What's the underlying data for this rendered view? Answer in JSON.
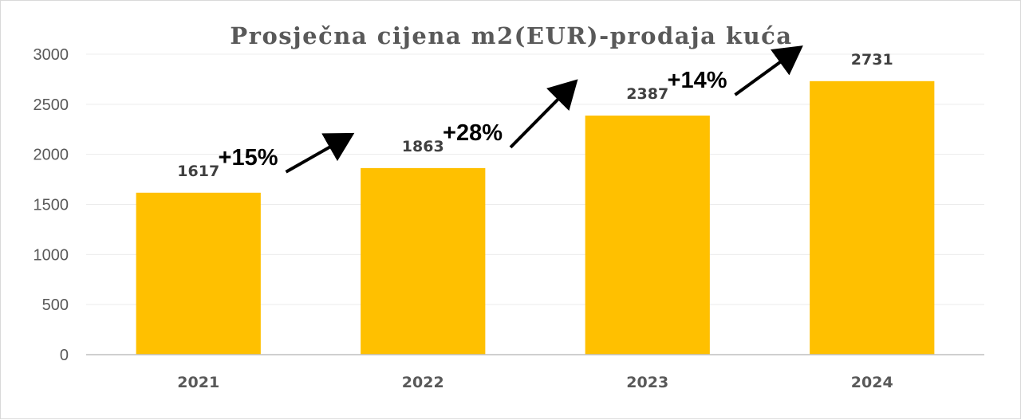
{
  "chart_data": {
    "type": "bar",
    "title": "Prosječna cijena m2(EUR)-prodaja kuća",
    "xlabel": "",
    "ylabel": "",
    "categories": [
      "2021",
      "2022",
      "2023",
      "2024"
    ],
    "values": [
      1617,
      1863,
      2387,
      2731
    ],
    "data_labels": [
      "1617",
      "1863",
      "2387",
      "2731"
    ],
    "ylim": [
      0,
      3000
    ],
    "yticks": [
      "0",
      "500",
      "1000",
      "1500",
      "2000",
      "2500",
      "3000"
    ],
    "grid": true,
    "legend": "none",
    "bar_color": "#FFC000",
    "annotations": [
      {
        "text": "+15%",
        "from": "2021",
        "to": "2022"
      },
      {
        "text": "+28%",
        "from": "2022",
        "to": "2023"
      },
      {
        "text": "+14%",
        "from": "2023",
        "to": "2024"
      }
    ]
  }
}
